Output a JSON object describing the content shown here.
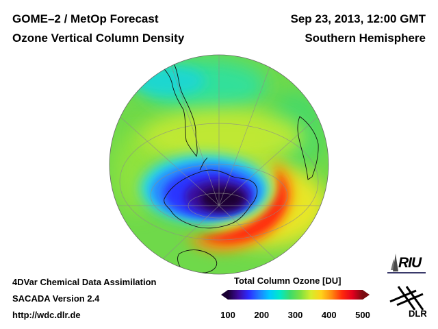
{
  "header": {
    "product": "GOME–2 / MetOp Forecast",
    "quantity": "Ozone Vertical Column Density",
    "datetime": "Sep 23, 2013, 12:00 GMT",
    "region": "Southern Hemisphere"
  },
  "footer": {
    "method": "4DVar Chemical Data Assimilation",
    "version": "SACADA Version 2.4",
    "url": "http://wdc.dlr.de"
  },
  "colorbar": {
    "title": "Total Column Ozone [DU]",
    "ticks": [
      "100",
      "200",
      "300",
      "400",
      "500"
    ],
    "range": [
      100,
      500
    ],
    "colors": [
      "#1a0033",
      "#3d0a9e",
      "#2b2bff",
      "#1f7bff",
      "#00c8ff",
      "#00e8c8",
      "#3ddc6a",
      "#7ee040",
      "#d6ec2c",
      "#ffd21a",
      "#ff8a10",
      "#ff2a0c",
      "#e3001e",
      "#7a0a10"
    ]
  },
  "map": {
    "projection": "orthographic, south pole centered",
    "ozone_hole_min_du": 130,
    "collar_max_du": 450,
    "background_du": 320
  },
  "logos": {
    "riu": "RIU",
    "dlr": "DLR"
  }
}
